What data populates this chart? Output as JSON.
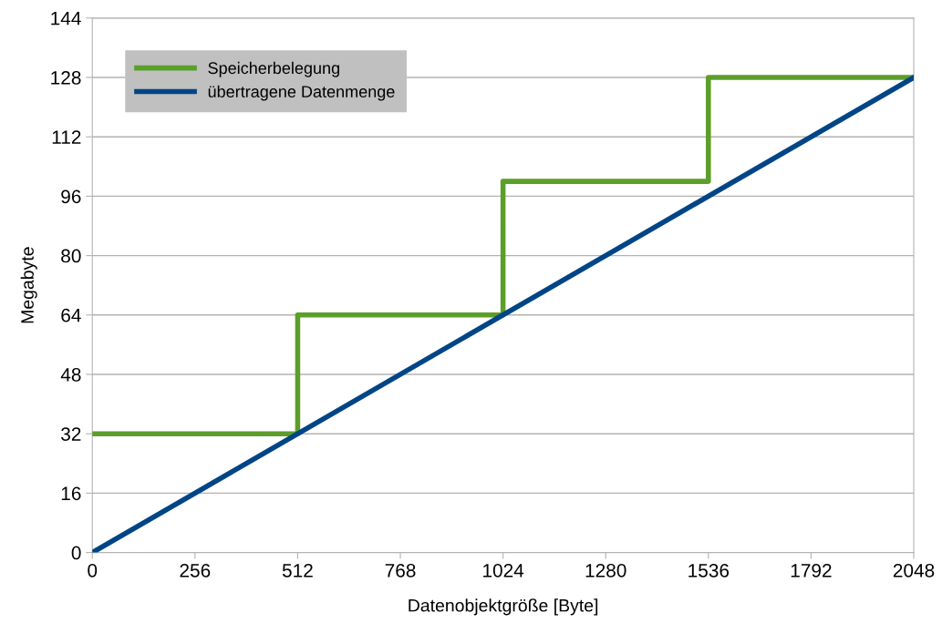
{
  "chart_data": {
    "type": "line",
    "xlabel": "Datenobjektgröße [Byte]",
    "ylabel": "Megabyte",
    "xlim": [
      0,
      2048
    ],
    "xticks": [
      0,
      256,
      512,
      768,
      1024,
      1280,
      1536,
      1792,
      2048
    ],
    "ylim": [
      0,
      144
    ],
    "yticks": [
      0,
      16,
      32,
      48,
      64,
      80,
      96,
      112,
      128,
      144
    ],
    "grid": "y",
    "legend": "top left",
    "line_style": "solid",
    "marker": "none",
    "series": [
      {
        "name": "Speicherbelegung",
        "type": "step",
        "color": "#5c9e2a",
        "x": [
          0,
          512,
          1024,
          1536,
          2048
        ],
        "values": [
          32,
          64,
          100,
          128,
          128
        ]
      },
      {
        "name": "übertragene Datenmenge",
        "color": "#004586",
        "x": [
          0,
          2048
        ],
        "values": [
          0,
          128
        ]
      }
    ]
  }
}
